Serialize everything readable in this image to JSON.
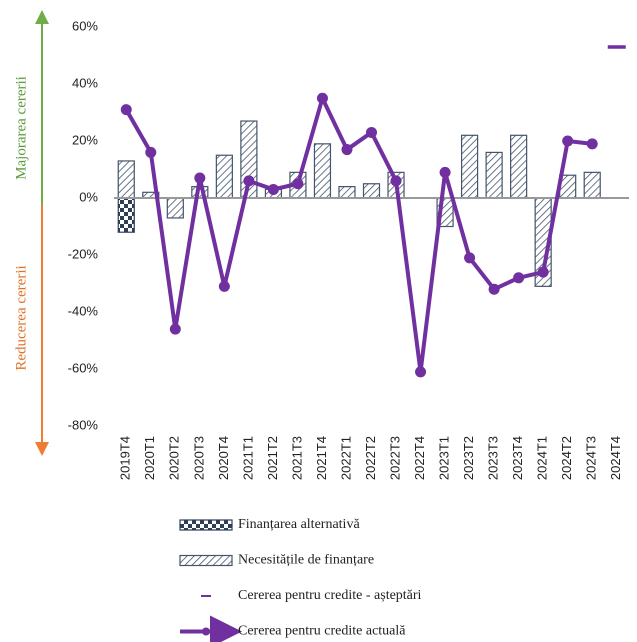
{
  "chart_data": {
    "type": "bar-line",
    "left_labels": {
      "up": "Majorarea cererii",
      "down": "Reducerea cererii"
    },
    "categories": [
      "2019T4",
      "2020T1",
      "2020T2",
      "2020T3",
      "2020T4",
      "2021T1",
      "2021T2",
      "2021T3",
      "2021T4",
      "2022T1",
      "2022T2",
      "2022T3",
      "2022T4",
      "2023T1",
      "2023T2",
      "2023T3",
      "2023T4",
      "2024T1",
      "2024T2",
      "2024T3",
      "2024T4"
    ],
    "series": [
      {
        "name": "Finanțarea alternativă",
        "kind": "bar",
        "color": "#2e3f55",
        "values": [
          -12,
          null,
          null,
          null,
          null,
          null,
          null,
          null,
          null,
          null,
          null,
          null,
          null,
          null,
          null,
          null,
          null,
          null,
          null,
          null,
          null
        ]
      },
      {
        "name": "Necesitățile de finanțare",
        "kind": "bar",
        "color": "#44546a",
        "values": [
          13,
          2,
          -7,
          4,
          15,
          27,
          3,
          9,
          19,
          4,
          5,
          9,
          0,
          -10,
          22,
          16,
          22,
          -31,
          8,
          9,
          null
        ]
      },
      {
        "name": "Cererea pentru credite - așteptări",
        "kind": "dash",
        "color": "#7030a0",
        "values": [
          null,
          null,
          null,
          null,
          null,
          null,
          null,
          null,
          null,
          null,
          null,
          null,
          null,
          null,
          null,
          null,
          null,
          null,
          null,
          null,
          53
        ]
      },
      {
        "name": "Cererea pentru credite actuală",
        "kind": "line",
        "color": "#7030a0",
        "values": [
          31,
          16,
          -46,
          7,
          -31,
          6,
          3,
          5,
          35,
          17,
          23,
          6,
          -61,
          9,
          -21,
          -32,
          -28,
          -26,
          20,
          19,
          null
        ]
      }
    ],
    "ylim": [
      -80,
      60
    ],
    "yticks": [
      {
        "value": -80,
        "label": "-80%"
      },
      {
        "value": -60,
        "label": "-60%"
      },
      {
        "value": -40,
        "label": "-40%"
      },
      {
        "value": -20,
        "label": "-20%"
      },
      {
        "value": 0,
        "label": "0%"
      },
      {
        "value": 20,
        "label": "20%"
      },
      {
        "value": 40,
        "label": "40%"
      },
      {
        "value": 60,
        "label": "60%"
      }
    ]
  }
}
